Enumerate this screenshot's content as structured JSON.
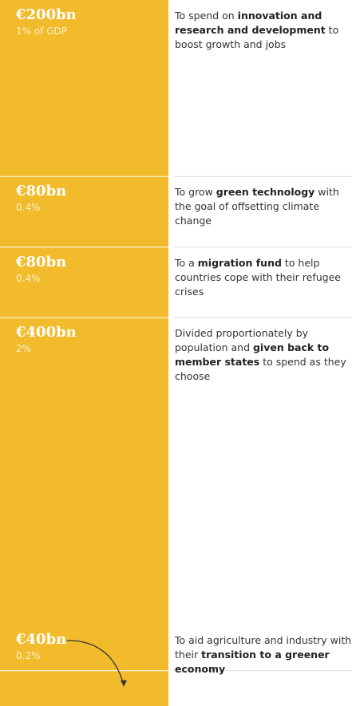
{
  "chart_data": {
    "type": "stacked-column",
    "color": "#f2bb2c",
    "segments": [
      {
        "value": 200,
        "value_label": "€200bn",
        "share": 1,
        "share_label": "1% of GDP",
        "description": [
          {
            "text": "To spend on ",
            "bold": false
          },
          {
            "text": "innovation and research and development",
            "bold": true
          },
          {
            "text": " to boost growth and jobs",
            "bold": false
          }
        ]
      },
      {
        "value": 80,
        "value_label": "€80bn",
        "share": 0.4,
        "share_label": "0.4%",
        "description": [
          {
            "text": "To grow ",
            "bold": false
          },
          {
            "text": "green technology",
            "bold": true
          },
          {
            "text": " with the goal of offsetting climate change",
            "bold": false
          }
        ]
      },
      {
        "value": 80,
        "value_label": "€80bn",
        "share": 0.4,
        "share_label": "0.4%",
        "description": [
          {
            "text": "To a ",
            "bold": false
          },
          {
            "text": "migration fund",
            "bold": true
          },
          {
            "text": " to help countries cope with their refugee crises",
            "bold": false
          }
        ]
      },
      {
        "value": 400,
        "value_label": "€400bn",
        "share": 2,
        "share_label": "2%",
        "description": [
          {
            "text": "Divided proportionately by population and ",
            "bold": false
          },
          {
            "text": "given back to member states",
            "bold": true
          },
          {
            "text": " to spend as they choose",
            "bold": false
          }
        ]
      },
      {
        "value": 40,
        "value_label": "€40bn",
        "share": 0.2,
        "share_label": "0.2%",
        "description": [
          {
            "text": "To aid agriculture and industry with their ",
            "bold": false
          },
          {
            "text": "transition to a greener economy",
            "bold": true
          }
        ]
      }
    ]
  }
}
